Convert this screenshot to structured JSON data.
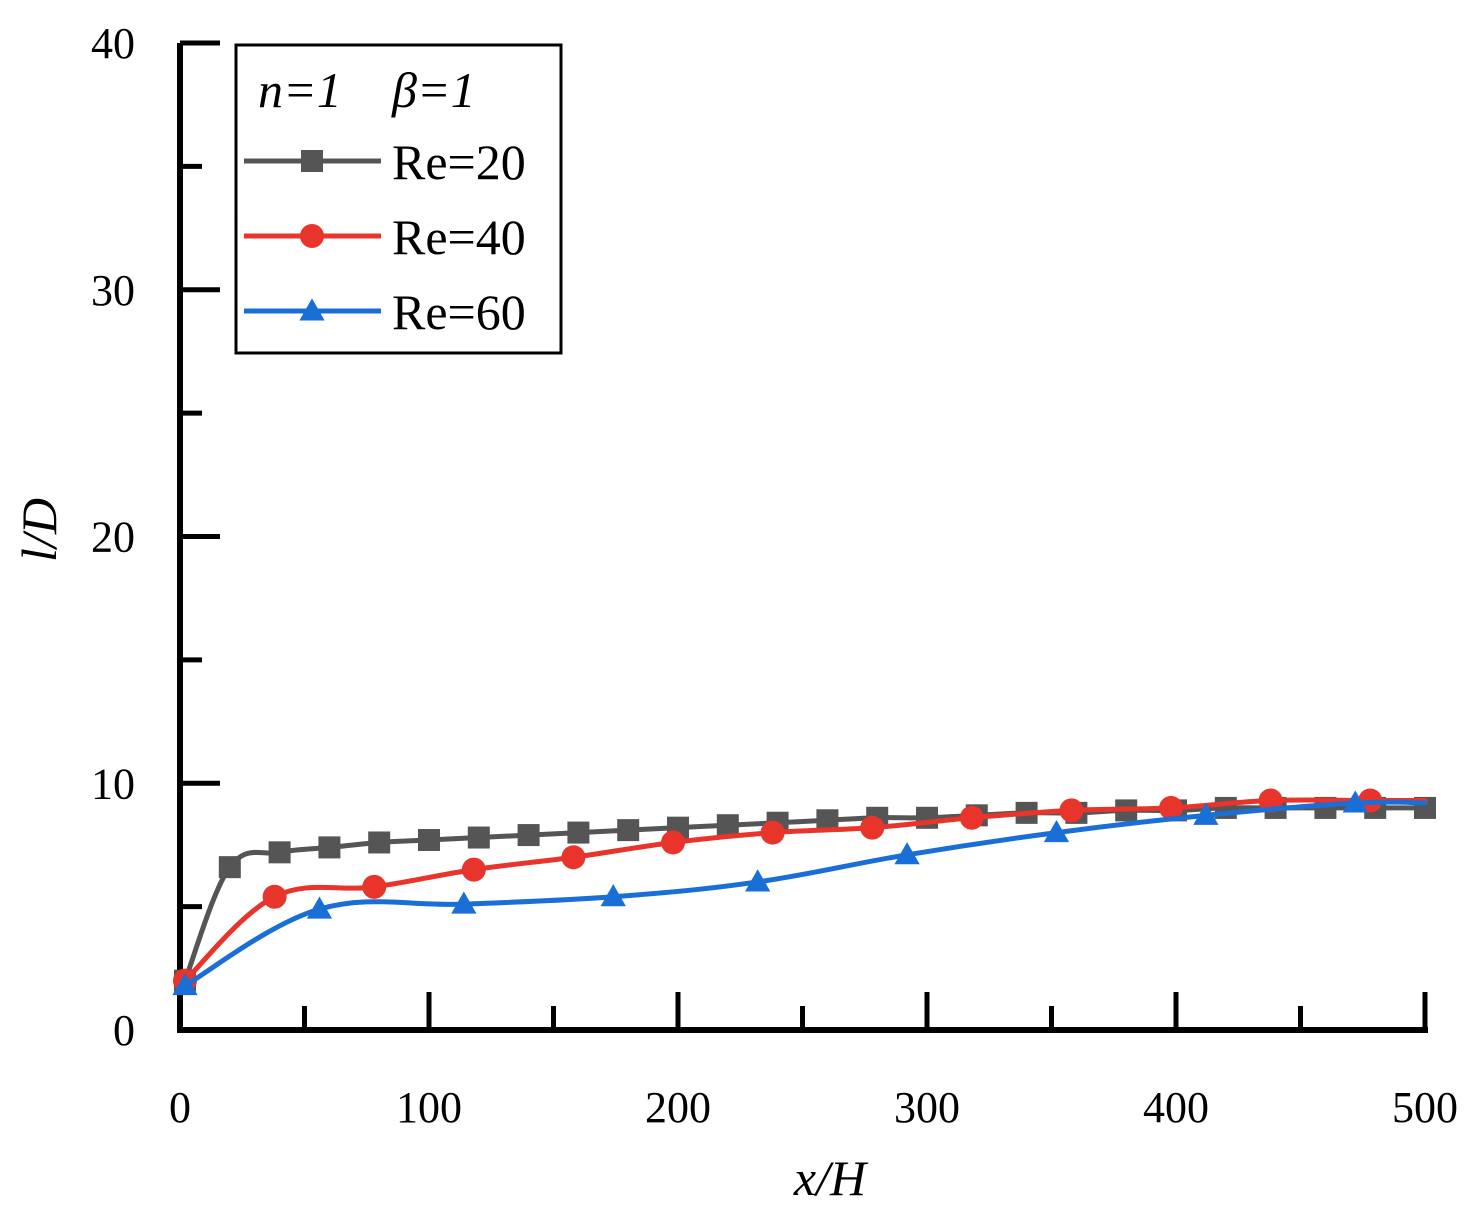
{
  "chart_data": {
    "type": "line",
    "title": "",
    "xlabel": "x/H",
    "ylabel": "l/D",
    "xlim": [
      0,
      500
    ],
    "ylim": [
      0,
      40
    ],
    "x_ticks": [
      "0",
      "100",
      "200",
      "300",
      "400",
      "500"
    ],
    "y_ticks": [
      "0",
      "10",
      "20",
      "30",
      "40"
    ],
    "legend": {
      "header_n": "n=1",
      "header_beta": "β=1",
      "placement": "top-left"
    },
    "series": [
      {
        "name": "Re=20",
        "color": "#555555",
        "marker": "square",
        "x": [
          2,
          20,
          40,
          60,
          80,
          100,
          120,
          140,
          160,
          180,
          200,
          220,
          240,
          260,
          280,
          300,
          320,
          340,
          360,
          380,
          400,
          420,
          440,
          460,
          480,
          500
        ],
        "y": [
          2.0,
          6.6,
          7.2,
          7.4,
          7.6,
          7.7,
          7.8,
          7.9,
          8.0,
          8.1,
          8.2,
          8.3,
          8.4,
          8.5,
          8.6,
          8.6,
          8.7,
          8.8,
          8.8,
          8.9,
          8.9,
          9.0,
          9.0,
          9.0,
          9.0,
          9.0
        ]
      },
      {
        "name": "Re=40",
        "color": "#e8342a",
        "marker": "circle",
        "x": [
          2,
          38,
          78,
          118,
          158,
          198,
          238,
          278,
          318,
          358,
          398,
          438,
          478,
          500
        ],
        "y": [
          2.0,
          5.4,
          5.8,
          6.5,
          7.0,
          7.6,
          8.0,
          8.2,
          8.6,
          8.9,
          9.0,
          9.3,
          9.3,
          9.3
        ]
      },
      {
        "name": "Re=60",
        "color": "#1a6fd6",
        "marker": "triangle",
        "x": [
          2,
          56,
          114,
          174,
          232,
          292,
          352,
          412,
          472,
          500
        ],
        "y": [
          1.8,
          4.9,
          5.1,
          5.4,
          6.0,
          7.1,
          8.0,
          8.7,
          9.2,
          9.2
        ]
      }
    ]
  }
}
